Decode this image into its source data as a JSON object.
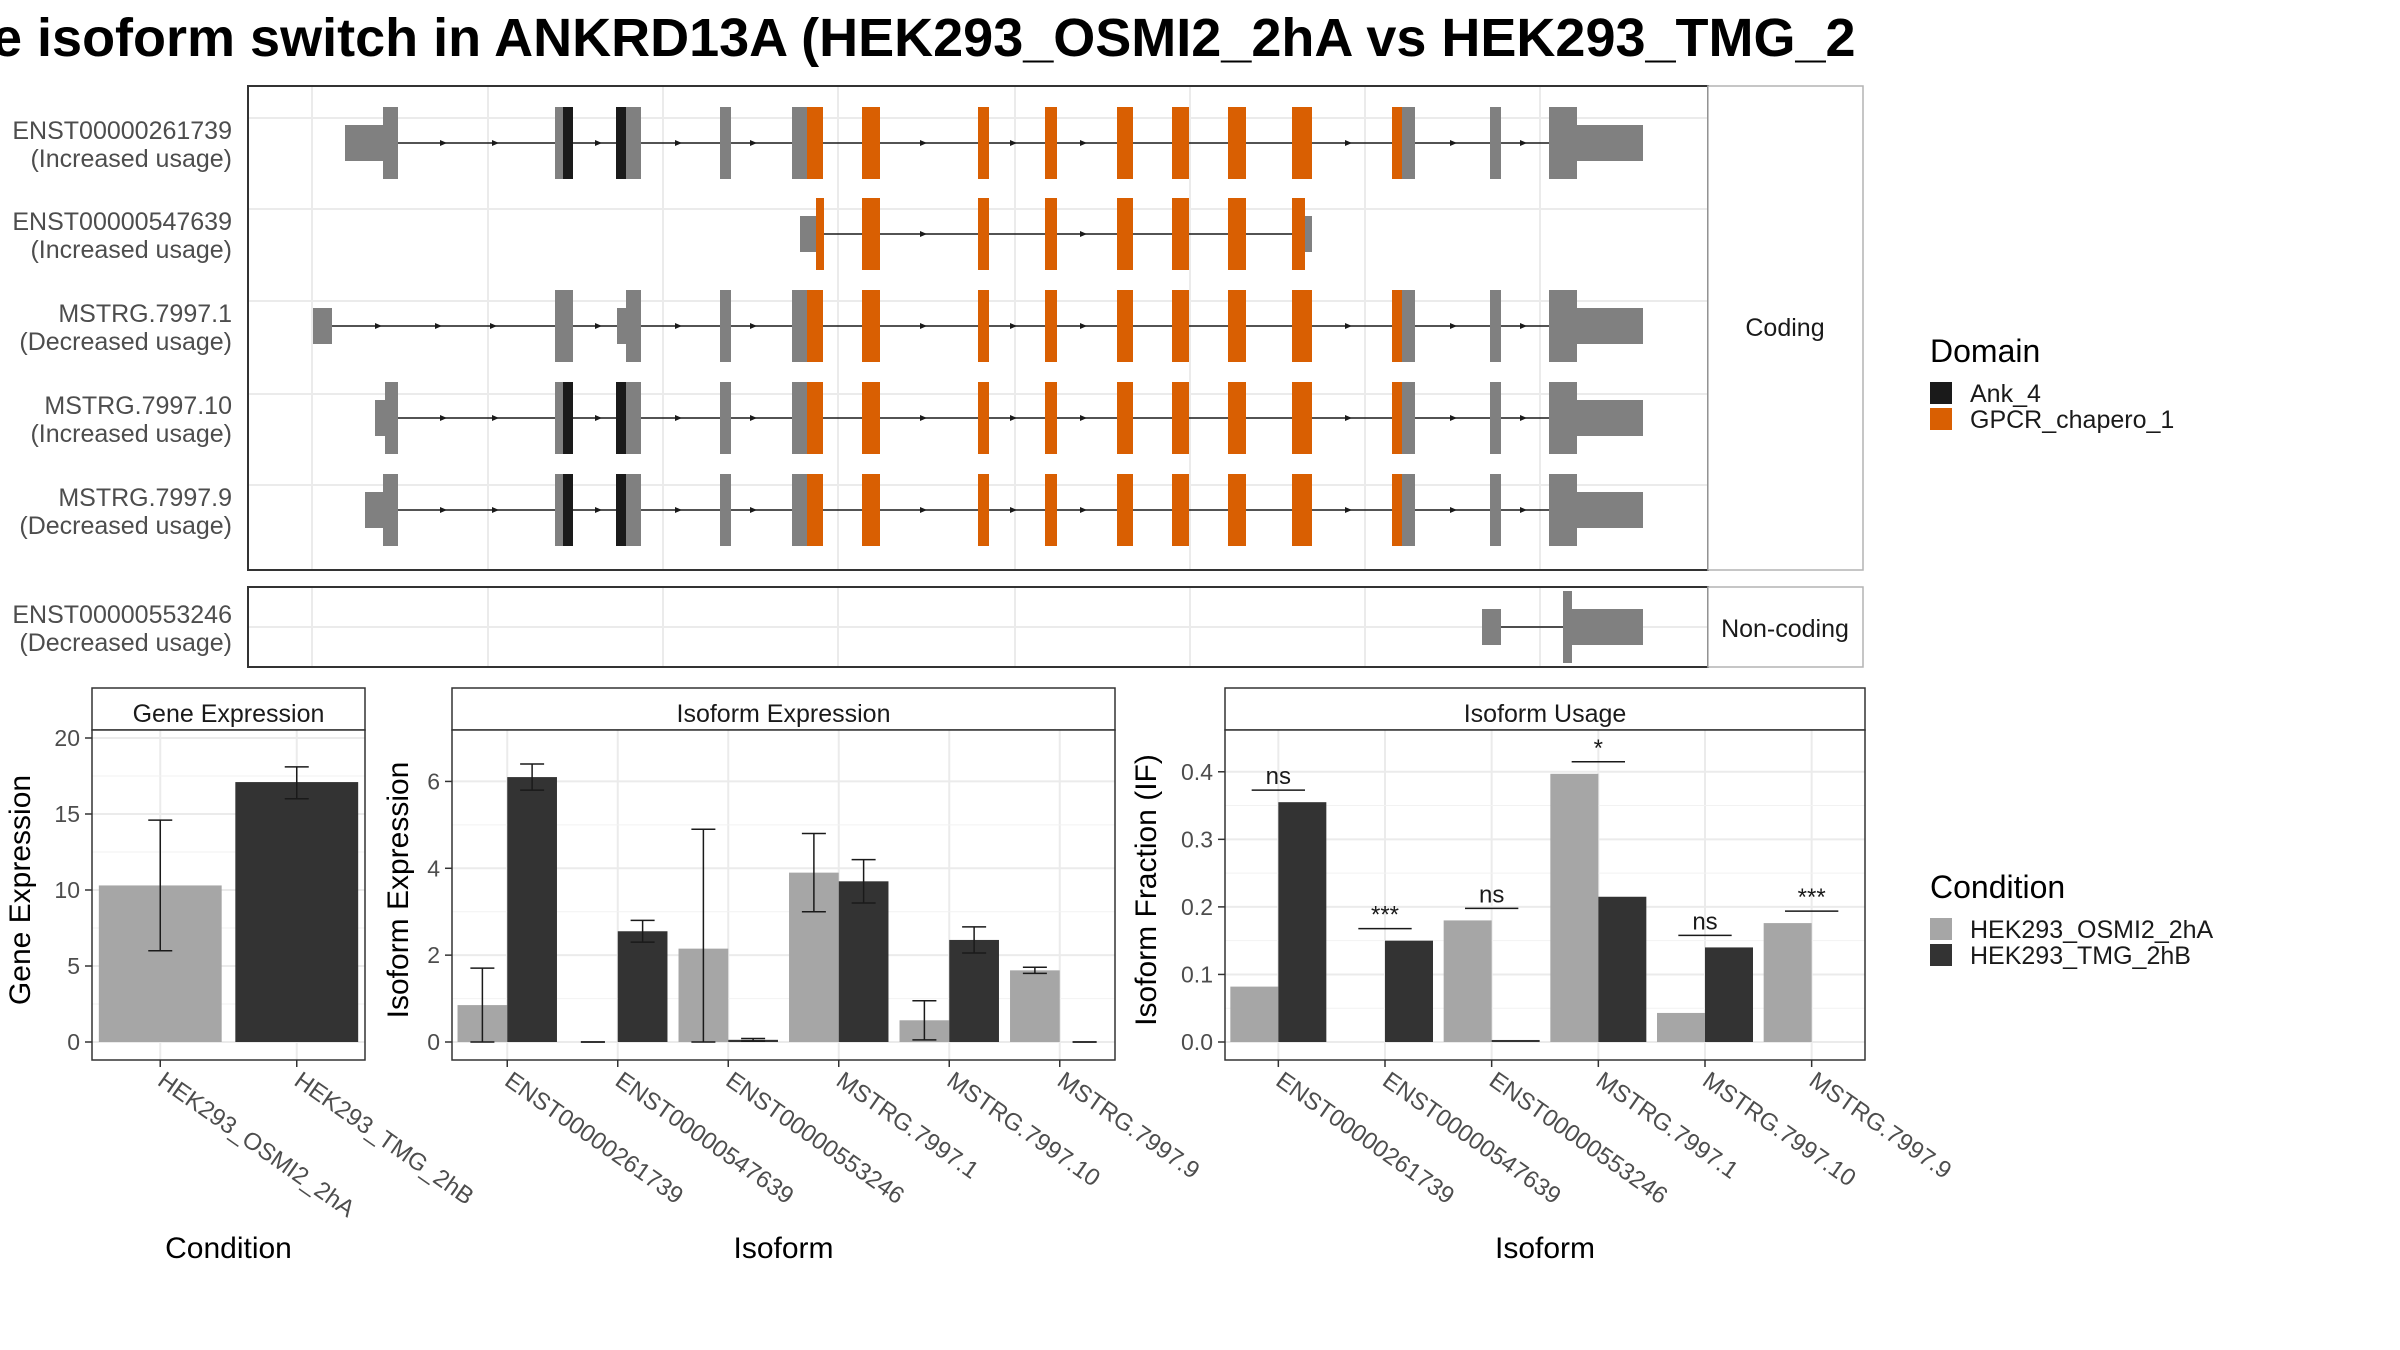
{
  "title": "e isoform switch in ANKRD13A (HEK293_OSMI2_2hA vs HEK293_TMG_2",
  "structure": {
    "coding_strip": "Coding",
    "noncoding_strip": "Non-coding",
    "coding_rows": [
      {
        "id": "ENST00000261739",
        "usage": "(Increased usage)"
      },
      {
        "id": "ENST00000547639",
        "usage": "(Increased usage)"
      },
      {
        "id": "MSTRG.7997.1",
        "usage": "(Decreased usage)"
      },
      {
        "id": "MSTRG.7997.10",
        "usage": "(Increased usage)"
      },
      {
        "id": "MSTRG.7997.9",
        "usage": "(Decreased usage)"
      }
    ],
    "noncoding_rows": [
      {
        "id": "ENST00000553246",
        "usage": "(Decreased usage)"
      }
    ]
  },
  "legend_domain": {
    "title": "Domain",
    "items": [
      {
        "label": "Ank_4",
        "color": "#1a1a1a"
      },
      {
        "label": "GPCR_chapero_1",
        "color": "#d95f02"
      }
    ]
  },
  "legend_condition": {
    "title": "Condition",
    "items": [
      {
        "label": "HEK293_OSMI2_2hA",
        "color": "#a6a6a6"
      },
      {
        "label": "HEK293_TMG_2hB",
        "color": "#333333"
      }
    ]
  },
  "colors": {
    "utr": "#808080",
    "ank": "#1a1a1a",
    "gpcr": "#d95f02",
    "cond_a": "#a6a6a6",
    "cond_b": "#333333"
  },
  "chart_data": [
    {
      "type": "bar",
      "panel": "Gene Expression",
      "xlabel": "Condition",
      "ylabel": "Gene Expression",
      "ylim": [
        0,
        20
      ],
      "yticks": [
        0,
        5,
        10,
        15,
        20
      ],
      "categories": [
        "HEK293_OSMI2_2hA",
        "HEK293_TMG_2hB"
      ],
      "values": [
        10.3,
        17.1
      ],
      "error_low": [
        6.0,
        16.0
      ],
      "error_high": [
        14.6,
        18.1
      ]
    },
    {
      "type": "bar",
      "panel": "Isoform Expression",
      "xlabel": "Isoform",
      "ylabel": "Isoform Expression",
      "ylim": [
        0,
        7
      ],
      "yticks": [
        0,
        2,
        4,
        6
      ],
      "categories": [
        "ENST00000261739",
        "ENST00000547639",
        "ENST00000553246",
        "MSTRG.7997.1",
        "MSTRG.7997.10",
        "MSTRG.7997.9"
      ],
      "series": [
        {
          "name": "HEK293_OSMI2_2hA",
          "values": [
            0.85,
            0.0,
            2.15,
            3.9,
            0.5,
            1.65
          ],
          "error_low": [
            0.0,
            0.0,
            0.0,
            3.0,
            0.05,
            1.58
          ],
          "error_high": [
            1.7,
            0.0,
            4.9,
            4.8,
            0.95,
            1.72
          ]
        },
        {
          "name": "HEK293_TMG_2hB",
          "values": [
            6.1,
            2.55,
            0.05,
            3.7,
            2.35,
            0.0
          ],
          "error_low": [
            5.8,
            2.3,
            0.02,
            3.2,
            2.05,
            0.0
          ],
          "error_high": [
            6.4,
            2.8,
            0.08,
            4.2,
            2.65,
            0.0
          ]
        }
      ]
    },
    {
      "type": "bar",
      "panel": "Isoform Usage",
      "xlabel": "Isoform",
      "ylabel": "Isoform Fraction (IF)",
      "ylim": [
        0,
        0.45
      ],
      "yticks": [
        0.0,
        0.1,
        0.2,
        0.3,
        0.4
      ],
      "ytick_labels": [
        "0.0",
        "0.1",
        "0.2",
        "0.3",
        "0.4"
      ],
      "categories": [
        "ENST00000261739",
        "ENST00000547639",
        "ENST00000553246",
        "MSTRG.7997.1",
        "MSTRG.7997.10",
        "MSTRG.7997.9"
      ],
      "series": [
        {
          "name": "HEK293_OSMI2_2hA",
          "values": [
            0.082,
            0.0,
            0.18,
            0.397,
            0.043,
            0.176
          ]
        },
        {
          "name": "HEK293_TMG_2hB",
          "values": [
            0.355,
            0.15,
            0.003,
            0.215,
            0.14,
            0.0
          ]
        }
      ],
      "significance": [
        "ns",
        "***",
        "ns",
        "*",
        "ns",
        "***"
      ]
    }
  ]
}
